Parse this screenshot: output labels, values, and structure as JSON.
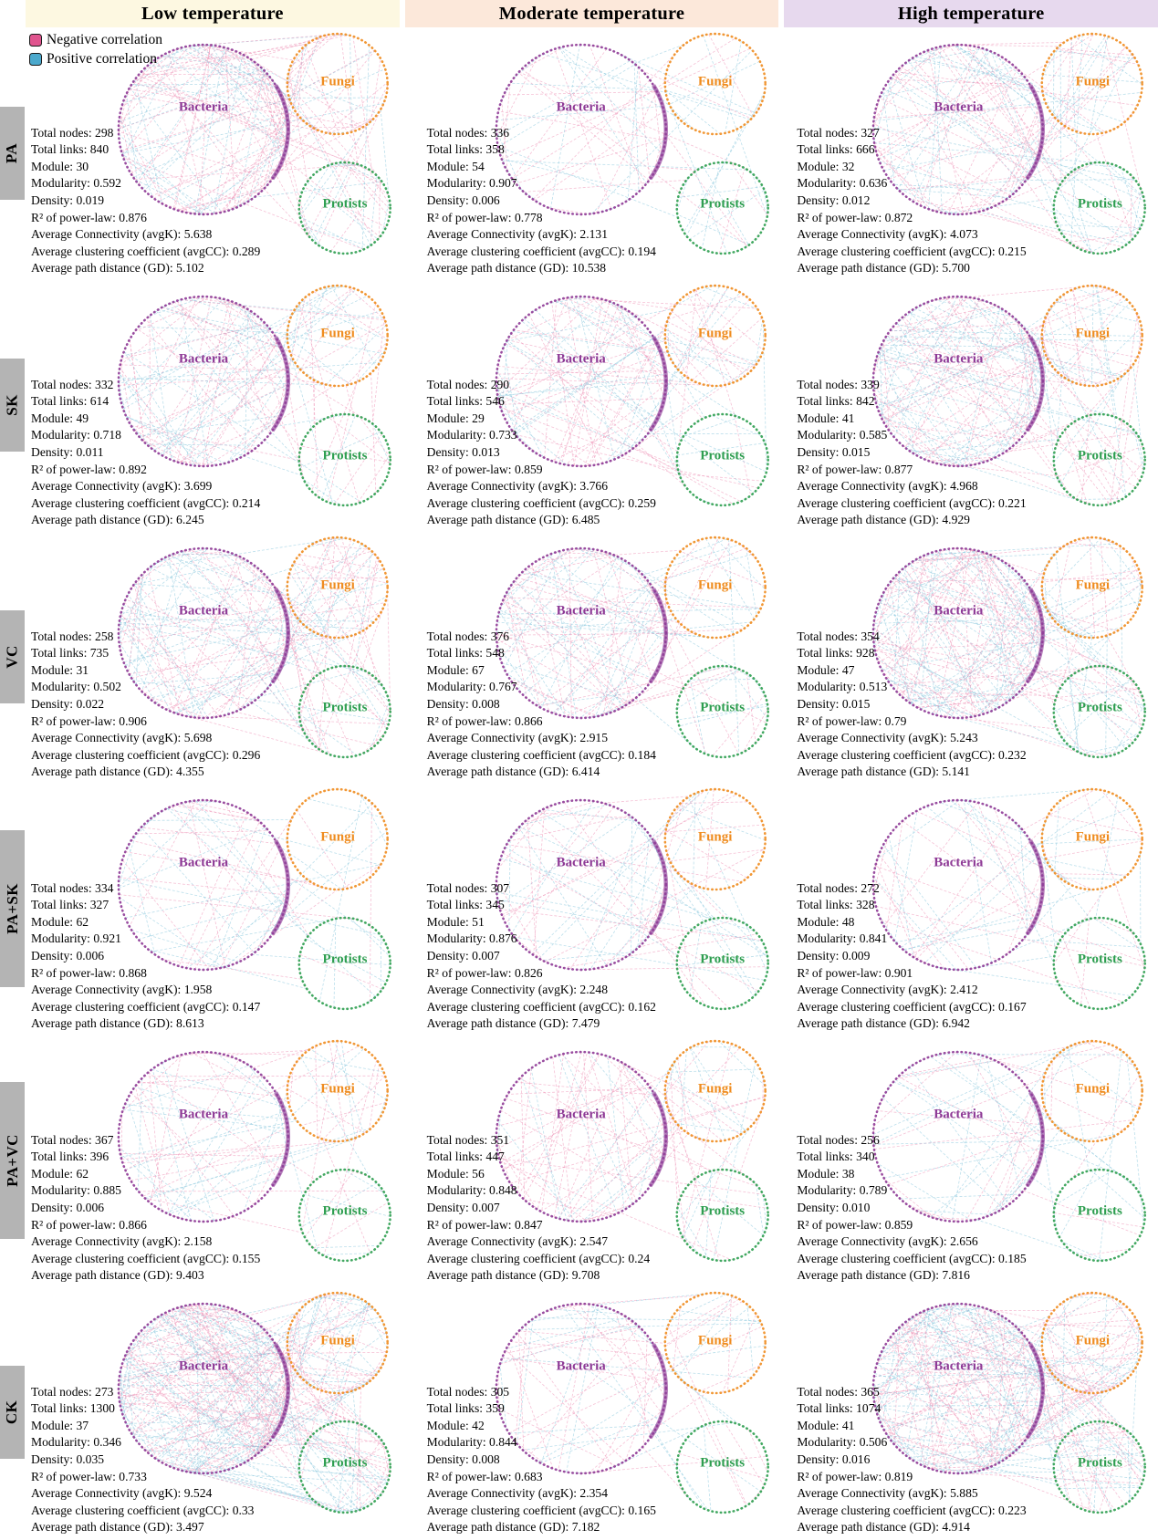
{
  "page": {
    "columns": [
      {
        "label": "Low temperature",
        "bg": "#fdf8e1"
      },
      {
        "label": "Moderate temperature",
        "bg": "#fce8da"
      },
      {
        "label": "High temperature",
        "bg": "#e7d9ee"
      }
    ],
    "legend": [
      {
        "label": "Negative correlation",
        "color": "#e0548e"
      },
      {
        "label": "Positive correlation",
        "color": "#4ba9cd"
      }
    ],
    "groups": [
      "Bacteria",
      "Fungi",
      "Protists"
    ],
    "group_colors": [
      "#8e3a96",
      "#ef8c1f",
      "#2e9e50"
    ],
    "edge_colors": {
      "negative": "#ee8fb4",
      "positive": "#85c5dc"
    },
    "stat_defs": [
      {
        "key": "total_nodes",
        "label": "Total nodes: "
      },
      {
        "key": "total_links",
        "label": "Total links: "
      },
      {
        "key": "module",
        "label": "Module: "
      },
      {
        "key": "modularity",
        "label": "Modularity: "
      },
      {
        "key": "density",
        "label": "Density: "
      },
      {
        "key": "r2_power_law",
        "label": "R² of power-law: "
      },
      {
        "key": "avg_connectivity",
        "label": "Average Connectivity (avgK): "
      },
      {
        "key": "avg_clustering",
        "label": "Average clustering coefficient (avgCC): "
      },
      {
        "key": "avg_path_distance",
        "label": "Average path distance (GD): "
      }
    ],
    "rows": [
      {
        "label": "PA",
        "cells": [
          {
            "total_nodes": "298",
            "total_links": "840",
            "module": "30",
            "modularity": "0.592",
            "density": "0.019",
            "r2_power_law": "0.876",
            "avg_connectivity": "5.638",
            "avg_clustering": "0.289",
            "avg_path_distance": "5.102"
          },
          {
            "total_nodes": "336",
            "total_links": "358",
            "module": "54",
            "modularity": "0.907",
            "density": "0.006",
            "r2_power_law": "0.778",
            "avg_connectivity": "2.131",
            "avg_clustering": "0.194",
            "avg_path_distance": "10.538"
          },
          {
            "total_nodes": "327",
            "total_links": "666",
            "module": "32",
            "modularity": "0.636",
            "density": "0.012",
            "r2_power_law": "0.872",
            "avg_connectivity": "4.073",
            "avg_clustering": "0.215",
            "avg_path_distance": "5.700"
          }
        ]
      },
      {
        "label": "SK",
        "cells": [
          {
            "total_nodes": "332",
            "total_links": "614",
            "module": "49",
            "modularity": "0.718",
            "density": "0.011",
            "r2_power_law": "0.892",
            "avg_connectivity": "3.699",
            "avg_clustering": "0.214",
            "avg_path_distance": "6.245"
          },
          {
            "total_nodes": "290",
            "total_links": "546",
            "module": "29",
            "modularity": "0.733",
            "density": "0.013",
            "r2_power_law": "0.859",
            "avg_connectivity": "3.766",
            "avg_clustering": "0.259",
            "avg_path_distance": "6.485"
          },
          {
            "total_nodes": "339",
            "total_links": "842",
            "module": "41",
            "modularity": "0.585",
            "density": "0.015",
            "r2_power_law": "0.877",
            "avg_connectivity": "4.968",
            "avg_clustering": "0.221",
            "avg_path_distance": "4.929"
          }
        ]
      },
      {
        "label": "VC",
        "cells": [
          {
            "total_nodes": "258",
            "total_links": "735",
            "module": "31",
            "modularity": "0.502",
            "density": "0.022",
            "r2_power_law": "0.906",
            "avg_connectivity": "5.698",
            "avg_clustering": "0.296",
            "avg_path_distance": "4.355"
          },
          {
            "total_nodes": "376",
            "total_links": "548",
            "module": "67",
            "modularity": "0.767",
            "density": "0.008",
            "r2_power_law": "0.866",
            "avg_connectivity": "2.915",
            "avg_clustering": "0.184",
            "avg_path_distance": "6.414"
          },
          {
            "total_nodes": "354",
            "total_links": "928",
            "module": "47",
            "modularity": "0.513",
            "density": "0.015",
            "r2_power_law": "0.79",
            "avg_connectivity": "5.243",
            "avg_clustering": "0.232",
            "avg_path_distance": "5.141"
          }
        ]
      },
      {
        "label": "PA+SK",
        "cells": [
          {
            "total_nodes": "334",
            "total_links": "327",
            "module": "62",
            "modularity": "0.921",
            "density": "0.006",
            "r2_power_law": "0.868",
            "avg_connectivity": "1.958",
            "avg_clustering": "0.147",
            "avg_path_distance": "8.613"
          },
          {
            "total_nodes": "307",
            "total_links": "345",
            "module": "51",
            "modularity": "0.876",
            "density": "0.007",
            "r2_power_law": "0.826",
            "avg_connectivity": "2.248",
            "avg_clustering": "0.162",
            "avg_path_distance": "7.479"
          },
          {
            "total_nodes": "272",
            "total_links": "328",
            "module": "48",
            "modularity": "0.841",
            "density": "0.009",
            "r2_power_law": "0.901",
            "avg_connectivity": "2.412",
            "avg_clustering": "0.167",
            "avg_path_distance": "6.942"
          }
        ]
      },
      {
        "label": "PA+VC",
        "cells": [
          {
            "total_nodes": "367",
            "total_links": "396",
            "module": "62",
            "modularity": "0.885",
            "density": "0.006",
            "r2_power_law": "0.866",
            "avg_connectivity": "2.158",
            "avg_clustering": "0.155",
            "avg_path_distance": "9.403"
          },
          {
            "total_nodes": "351",
            "total_links": "447",
            "module": "56",
            "modularity": "0.848",
            "density": "0.007",
            "r2_power_law": "0.847",
            "avg_connectivity": "2.547",
            "avg_clustering": "0.24",
            "avg_path_distance": "9.708"
          },
          {
            "total_nodes": "256",
            "total_links": "340",
            "module": "38",
            "modularity": "0.789",
            "density": "0.010",
            "r2_power_law": "0.859",
            "avg_connectivity": "2.656",
            "avg_clustering": "0.185",
            "avg_path_distance": "7.816"
          }
        ]
      },
      {
        "label": "CK",
        "cells": [
          {
            "total_nodes": "273",
            "total_links": "1300",
            "module": "37",
            "modularity": "0.346",
            "density": "0.035",
            "r2_power_law": "0.733",
            "avg_connectivity": "9.524",
            "avg_clustering": "0.33",
            "avg_path_distance": "3.497"
          },
          {
            "total_nodes": "305",
            "total_links": "359",
            "module": "42",
            "modularity": "0.844",
            "density": "0.008",
            "r2_power_law": "0.683",
            "avg_connectivity": "2.354",
            "avg_clustering": "0.165",
            "avg_path_distance": "7.182"
          },
          {
            "total_nodes": "365",
            "total_links": "1074",
            "module": "41",
            "modularity": "0.506",
            "density": "0.016",
            "r2_power_law": "0.819",
            "avg_connectivity": "5.885",
            "avg_clustering": "0.223",
            "avg_path_distance": "4.914"
          }
        ]
      }
    ]
  }
}
